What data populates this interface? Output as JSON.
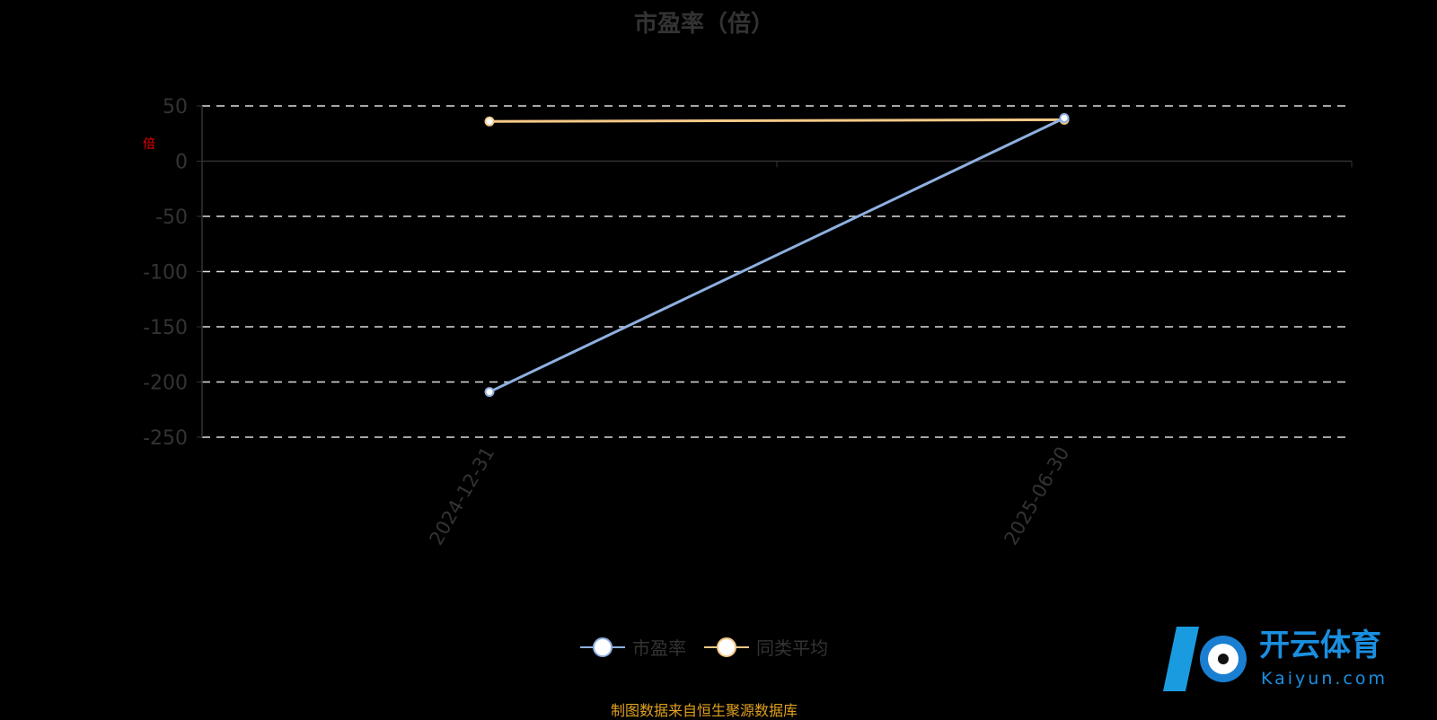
{
  "chart_data": {
    "type": "line",
    "title": "市盈率（倍）",
    "ylabel": "倍",
    "categories": [
      "2024-12-31",
      "2025-06-30"
    ],
    "series": [
      {
        "name": "市盈率",
        "values": [
          -209,
          39
        ],
        "color": "#8eb0e0"
      },
      {
        "name": "同类平均",
        "values": [
          36,
          37.5
        ],
        "color": "#f5c987"
      }
    ],
    "ylim": [
      -250,
      50
    ],
    "yticks": [
      50,
      0,
      -50,
      -100,
      -150,
      -200,
      -250
    ],
    "grid": true,
    "legend": "bottom"
  },
  "source": "制图数据来自恒生聚源数据库",
  "watermark": {
    "text": "开云体育",
    "sub": "Kaiyun.com"
  }
}
